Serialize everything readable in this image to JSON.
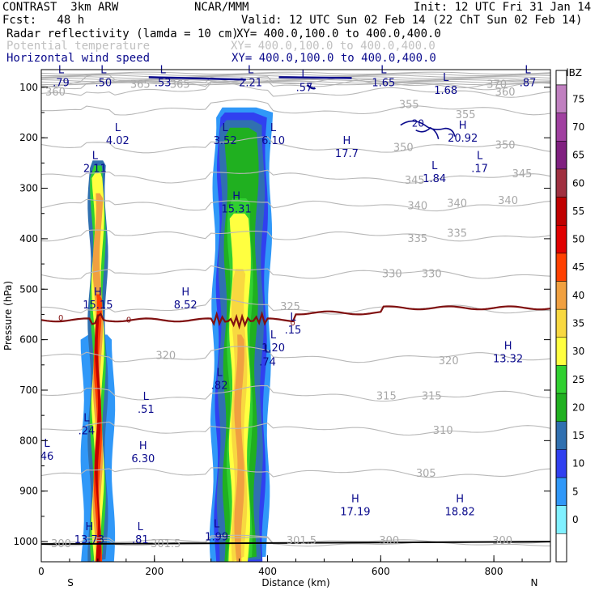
{
  "header": {
    "model": "CONTRAST  3km ARW",
    "org": "NCAR/MMM",
    "init": "Init: 12 UTC Fri 31 Jan 14",
    "fcst": "Fcst:   48 h",
    "valid": "Valid: 12 UTC Sun 02 Feb 14 (22 ChT Sun 02 Feb 14)",
    "fields": [
      {
        "name": "Radar reflectivity (lamda = 10 cm)",
        "xy": "XY= 400.0,100.0 to 400.0,400.0",
        "color": "#000000"
      },
      {
        "name": "Potential temperature",
        "xy": "XY= 400.0,100.0 to 400.0,400.0",
        "color": "#c0c0c0"
      },
      {
        "name": "Horizontal wind speed",
        "xy": "XY= 400.0,100.0 to 400.0,400.0",
        "color": "#0a0a8c"
      }
    ]
  },
  "chart_data": {
    "type": "cross-section",
    "xlabel": "Distance (km)",
    "ylabel": "Pressure (hPa)",
    "xlim": [
      0,
      900
    ],
    "ylim": [
      1040,
      65
    ],
    "xticks": [
      0,
      200,
      400,
      600,
      800
    ],
    "yticks": [
      100,
      200,
      300,
      400,
      500,
      600,
      700,
      800,
      900,
      1000
    ],
    "x_end_labels": {
      "left": "S",
      "right": "N"
    },
    "colorbar": {
      "unit": "dBZ",
      "levels": [
        75,
        70,
        65,
        60,
        55,
        50,
        45,
        40,
        35,
        30,
        25,
        20,
        15,
        10,
        5,
        0
      ],
      "colors": [
        "#c080c0",
        "#a040a0",
        "#802080",
        "#a03040",
        "#c00000",
        "#e00000",
        "#ff4000",
        "#f0a040",
        "#f8d840",
        "#ffff40",
        "#30d030",
        "#20b020",
        "#3070b0",
        "#3040f0",
        "#3098f8",
        "#80f0ff",
        "#ffffff"
      ]
    },
    "reflectivity_cells": [
      {
        "x_center": 100,
        "width_km": 55,
        "top_hpa": 250,
        "core_dbz": 55
      },
      {
        "x_center": 350,
        "width_km": 100,
        "top_hpa": 150,
        "core_dbz": 40
      }
    ],
    "freezing_level_label": "0",
    "theta_contours": [
      {
        "value": 300,
        "label_positions": [
          [
            35,
            1005
          ],
          [
            615,
            998
          ],
          [
            815,
            998
          ]
        ]
      },
      {
        "value": 301.5,
        "label_positions": [
          [
            220,
            1005
          ],
          [
            460,
            998
          ]
        ]
      },
      {
        "value": 305,
        "label_positions": [
          [
            680,
            865
          ]
        ]
      },
      {
        "value": 310,
        "label_positions": [
          [
            710,
            780
          ]
        ]
      },
      {
        "value": 315,
        "label_positions": [
          [
            610,
            712
          ],
          [
            690,
            712
          ]
        ]
      },
      {
        "value": 320,
        "label_positions": [
          [
            220,
            632
          ],
          [
            720,
            642
          ]
        ]
      },
      {
        "value": 325,
        "label_positions": [
          [
            440,
            535
          ]
        ]
      },
      {
        "value": 330,
        "label_positions": [
          [
            620,
            470
          ],
          [
            690,
            470
          ]
        ]
      },
      {
        "value": 335,
        "label_positions": [
          [
            665,
            400
          ],
          [
            735,
            390
          ]
        ]
      },
      {
        "value": 340,
        "label_positions": [
          [
            665,
            335
          ],
          [
            735,
            330
          ],
          [
            825,
            325
          ]
        ]
      },
      {
        "value": 345,
        "label_positions": [
          [
            660,
            285
          ],
          [
            850,
            272
          ]
        ]
      },
      {
        "value": 350,
        "label_positions": [
          [
            640,
            220
          ],
          [
            820,
            215
          ]
        ]
      },
      {
        "value": 355,
        "label_positions": [
          [
            650,
            135
          ],
          [
            750,
            155
          ]
        ]
      },
      {
        "value": 360,
        "label_positions": [
          [
            25,
            110
          ],
          [
            820,
            110
          ]
        ]
      },
      {
        "value": 365,
        "label_positions": [
          [
            175,
            95
          ],
          [
            245,
            95
          ]
        ]
      },
      {
        "value": 370,
        "label_positions": [
          [
            805,
            95
          ]
        ]
      }
    ],
    "wind_extrema": [
      {
        "type": "L",
        "value": ".79",
        "x": 35,
        "y": 85
      },
      {
        "type": "L",
        "value": ".50",
        "x": 110,
        "y": 85
      },
      {
        "type": "L",
        "value": ".53",
        "x": 215,
        "y": 85
      },
      {
        "type": "L",
        "value": "2.21",
        "x": 370,
        "y": 85
      },
      {
        "type": "L",
        "value": ".57",
        "x": 465,
        "y": 95
      },
      {
        "type": "L",
        "value": "1.65",
        "x": 605,
        "y": 85
      },
      {
        "type": "L",
        "value": "1.68",
        "x": 715,
        "y": 100
      },
      {
        "type": "L",
        "value": ".87",
        "x": 860,
        "y": 85
      },
      {
        "type": "H",
        "value": "20.92",
        "x": 745,
        "y": 195
      },
      {
        "type": "L",
        "value": "4.02",
        "x": 135,
        "y": 200
      },
      {
        "type": "L",
        "value": "3.52",
        "x": 325,
        "y": 200
      },
      {
        "type": "L",
        "value": "6.10",
        "x": 410,
        "y": 200
      },
      {
        "type": "H",
        "value": "17.7",
        "x": 540,
        "y": 225
      },
      {
        "type": "L",
        "value": "2.11",
        "x": 95,
        "y": 255
      },
      {
        "type": "L",
        "value": "1.84",
        "x": 695,
        "y": 275
      },
      {
        "type": "L",
        "value": ".17",
        "x": 775,
        "y": 255
      },
      {
        "type": "H",
        "value": "15.31",
        "x": 345,
        "y": 335
      },
      {
        "type": "H",
        "value": "15.15",
        "x": 100,
        "y": 525
      },
      {
        "type": "H",
        "value": "8.52",
        "x": 255,
        "y": 525
      },
      {
        "type": "L",
        "value": ".15",
        "x": 445,
        "y": 575
      },
      {
        "type": "L",
        "value": "1.20",
        "x": 410,
        "y": 610
      },
      {
        "type": "L",
        "value": ".74",
        "x": 400,
        "y": 638
      },
      {
        "type": "H",
        "value": "13.32",
        "x": 825,
        "y": 632
      },
      {
        "type": "L",
        "value": ".82",
        "x": 315,
        "y": 685
      },
      {
        "type": "L",
        "value": ".51",
        "x": 185,
        "y": 732
      },
      {
        "type": "L",
        "value": ".24",
        "x": 80,
        "y": 775
      },
      {
        "type": "L",
        "value": "46",
        "x": 10,
        "y": 825
      },
      {
        "type": "H",
        "value": "6.30",
        "x": 180,
        "y": 830
      },
      {
        "type": "H",
        "value": "17.19",
        "x": 555,
        "y": 935
      },
      {
        "type": "H",
        "value": "18.82",
        "x": 740,
        "y": 935
      },
      {
        "type": "H",
        "value": "13.73",
        "x": 85,
        "y": 990
      },
      {
        "type": "L",
        "value": ".81",
        "x": 175,
        "y": 990
      },
      {
        "type": "L",
        "value": "1.99",
        "x": 310,
        "y": 985
      }
    ],
    "wind_contour_label": {
      "value": "20",
      "x": 655,
      "y": 172
    }
  }
}
